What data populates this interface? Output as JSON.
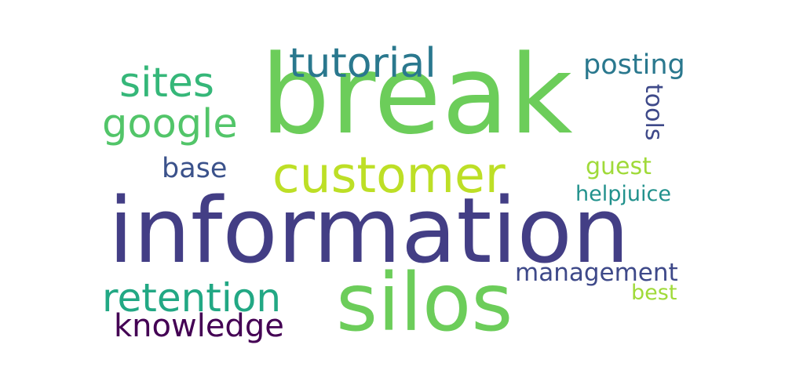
{
  "words": [
    {
      "text": "break",
      "color": "#6ccd5a"
    },
    {
      "text": "information",
      "color": "#433e85"
    },
    {
      "text": "silos",
      "color": "#6ccd5a"
    },
    {
      "text": "customer",
      "color": "#bddf26"
    },
    {
      "text": "tutorial",
      "color": "#2a788e"
    },
    {
      "text": "sites",
      "color": "#35b779"
    },
    {
      "text": "google",
      "color": "#52c569"
    },
    {
      "text": "retention",
      "color": "#22a884"
    },
    {
      "text": "knowledge",
      "color": "#440154"
    },
    {
      "text": "base",
      "color": "#3b528b"
    },
    {
      "text": "posting",
      "color": "#2a788e"
    },
    {
      "text": "management",
      "color": "#3e4989"
    },
    {
      "text": "guest",
      "color": "#a0da39"
    },
    {
      "text": "helpjuice",
      "color": "#21918c"
    },
    {
      "text": "best",
      "color": "#a0da39"
    },
    {
      "text": "tools",
      "color": "#3e4989"
    }
  ]
}
